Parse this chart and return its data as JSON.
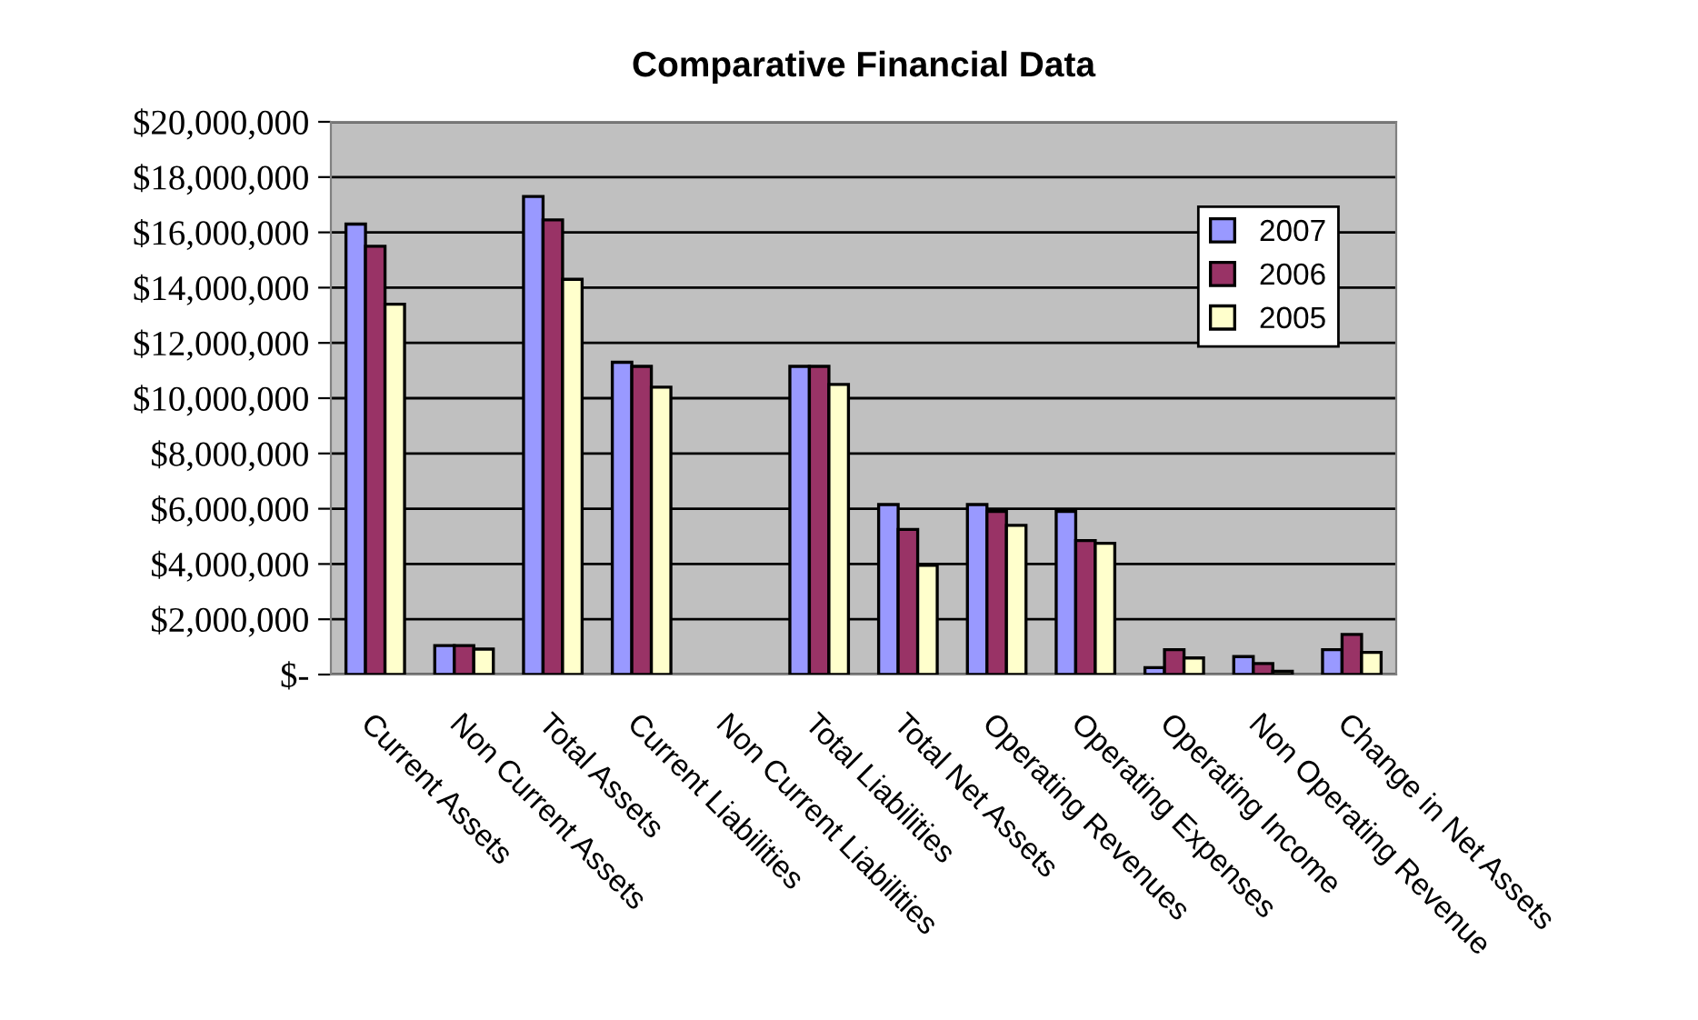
{
  "chart_data": {
    "type": "bar",
    "title": "Comparative Financial Data",
    "categories": [
      "Current Assets",
      "Non Current Assets",
      "Total Assets",
      "Current Liabilities",
      "Non Current Liabilities",
      "Total Liabilities",
      "Total Net Assets",
      "Operating Revenues",
      "Operating Expenses",
      "Operating Income",
      "Non Operating Revenue",
      "Change in Net Assets"
    ],
    "series": [
      {
        "name": "2007",
        "color": "#9999ff",
        "values": [
          16300000,
          1050000,
          17300000,
          11300000,
          null,
          11150000,
          6150000,
          6150000,
          5900000,
          250000,
          650000,
          900000
        ]
      },
      {
        "name": "2006",
        "color": "#993366",
        "values": [
          15500000,
          1050000,
          16450000,
          11150000,
          null,
          11150000,
          5250000,
          5900000,
          4850000,
          900000,
          400000,
          1450000
        ]
      },
      {
        "name": "2005",
        "color": "#ffffcc",
        "values": [
          13400000,
          920000,
          14300000,
          10400000,
          null,
          10500000,
          3950000,
          5400000,
          4750000,
          600000,
          120000,
          800000
        ]
      }
    ],
    "ylim": [
      0,
      20000000
    ],
    "yticks": [
      {
        "value": 0,
        "label": "$-"
      },
      {
        "value": 2000000,
        "label": "$2,000,000"
      },
      {
        "value": 4000000,
        "label": "$4,000,000"
      },
      {
        "value": 6000000,
        "label": "$6,000,000"
      },
      {
        "value": 8000000,
        "label": "$8,000,000"
      },
      {
        "value": 10000000,
        "label": "$10,000,000"
      },
      {
        "value": 12000000,
        "label": "$12,000,000"
      },
      {
        "value": 14000000,
        "label": "$14,000,000"
      },
      {
        "value": 16000000,
        "label": "$16,000,000"
      },
      {
        "value": 18000000,
        "label": "$18,000,000"
      },
      {
        "value": 20000000,
        "label": "$20,000,000"
      }
    ],
    "grid": "y",
    "legend": "right"
  }
}
